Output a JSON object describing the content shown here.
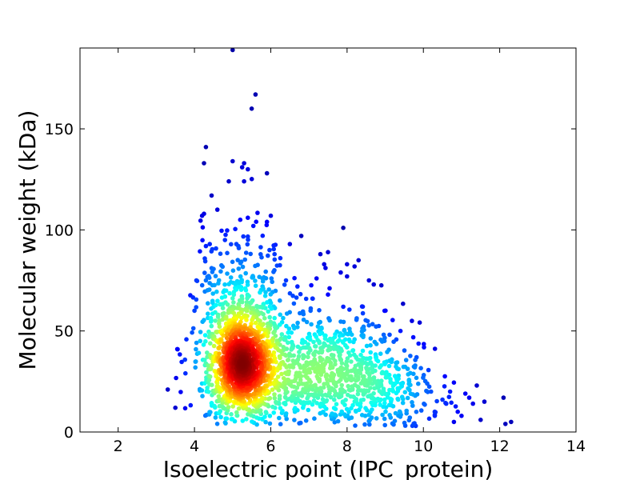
{
  "chart_data": {
    "type": "scatter",
    "title": "",
    "xlabel": "Isoelectric point (IPC_protein)",
    "ylabel": "Molecular weight (kDa)",
    "xlim": [
      1,
      14
    ],
    "ylim": [
      0,
      190
    ],
    "xticks": [
      2,
      4,
      6,
      8,
      10,
      12,
      14
    ],
    "yticks": [
      0,
      50,
      100,
      150
    ],
    "grid": false,
    "legend": "none",
    "color_scale": "jet (point density)",
    "colors": [
      "#00007f",
      "#0000ff",
      "#007fff",
      "#00ffff",
      "#7fff7f",
      "#ffff00",
      "#ff7f00",
      "#ff0000",
      "#7f0000"
    ],
    "outliers": [
      {
        "x": 5.0,
        "y": 189
      },
      {
        "x": 5.6,
        "y": 167
      },
      {
        "x": 5.5,
        "y": 160
      },
      {
        "x": 4.3,
        "y": 141
      },
      {
        "x": 4.25,
        "y": 133
      },
      {
        "x": 5.0,
        "y": 134
      },
      {
        "x": 5.3,
        "y": 133
      },
      {
        "x": 5.25,
        "y": 131
      },
      {
        "x": 5.4,
        "y": 130
      },
      {
        "x": 5.9,
        "y": 128
      },
      {
        "x": 5.3,
        "y": 124
      },
      {
        "x": 4.9,
        "y": 124
      },
      {
        "x": 4.45,
        "y": 117
      },
      {
        "x": 4.6,
        "y": 110
      },
      {
        "x": 4.25,
        "y": 108
      },
      {
        "x": 4.2,
        "y": 107
      },
      {
        "x": 6.0,
        "y": 107
      },
      {
        "x": 5.4,
        "y": 106
      },
      {
        "x": 5.2,
        "y": 105
      },
      {
        "x": 5.9,
        "y": 104
      },
      {
        "x": 7.9,
        "y": 101
      },
      {
        "x": 6.8,
        "y": 97
      },
      {
        "x": 4.8,
        "y": 95
      },
      {
        "x": 5.1,
        "y": 93
      },
      {
        "x": 6.5,
        "y": 93
      },
      {
        "x": 4.3,
        "y": 92
      },
      {
        "x": 6.1,
        "y": 88
      },
      {
        "x": 6.25,
        "y": 86
      },
      {
        "x": 7.5,
        "y": 89
      },
      {
        "x": 7.3,
        "y": 88
      },
      {
        "x": 8.3,
        "y": 85
      },
      {
        "x": 7.4,
        "y": 83
      },
      {
        "x": 8.0,
        "y": 83
      },
      {
        "x": 8.0,
        "y": 77
      },
      {
        "x": 7.2,
        "y": 76
      },
      {
        "x": 4.05,
        "y": 75
      },
      {
        "x": 4.3,
        "y": 75
      },
      {
        "x": 6.4,
        "y": 75
      },
      {
        "x": 8.7,
        "y": 73
      },
      {
        "x": 6.7,
        "y": 72
      },
      {
        "x": 7.5,
        "y": 68
      },
      {
        "x": 7.1,
        "y": 66
      },
      {
        "x": 7.9,
        "y": 62
      },
      {
        "x": 4.0,
        "y": 60
      },
      {
        "x": 3.55,
        "y": 41
      },
      {
        "x": 3.3,
        "y": 21
      },
      {
        "x": 3.5,
        "y": 12
      },
      {
        "x": 9.7,
        "y": 55
      },
      {
        "x": 9.4,
        "y": 50
      },
      {
        "x": 10.1,
        "y": 24
      },
      {
        "x": 10.2,
        "y": 20
      },
      {
        "x": 10.5,
        "y": 16
      },
      {
        "x": 10.6,
        "y": 14
      },
      {
        "x": 10.7,
        "y": 20
      },
      {
        "x": 10.9,
        "y": 10
      },
      {
        "x": 11.0,
        "y": 8
      },
      {
        "x": 11.1,
        "y": 19
      },
      {
        "x": 11.2,
        "y": 17
      },
      {
        "x": 11.3,
        "y": 14
      },
      {
        "x": 11.4,
        "y": 23
      },
      {
        "x": 11.5,
        "y": 6
      },
      {
        "x": 11.6,
        "y": 15
      },
      {
        "x": 12.1,
        "y": 17
      },
      {
        "x": 12.15,
        "y": 4
      },
      {
        "x": 12.3,
        "y": 5
      },
      {
        "x": 10.8,
        "y": 5
      },
      {
        "x": 10.3,
        "y": 8
      },
      {
        "x": 9.8,
        "y": 3
      }
    ],
    "clusters": [
      {
        "cx": 5.25,
        "cy": 32,
        "sx": 0.42,
        "sy": 12,
        "n": 900
      },
      {
        "cx": 5.1,
        "cy": 40,
        "sx": 0.6,
        "sy": 22,
        "n": 500
      },
      {
        "cx": 7.8,
        "cy": 28,
        "sx": 1.05,
        "sy": 13,
        "n": 650
      },
      {
        "cx": 6.4,
        "cy": 30,
        "sx": 0.7,
        "sy": 14,
        "n": 220
      },
      {
        "cx": 5.3,
        "cy": 75,
        "sx": 0.55,
        "sy": 14,
        "n": 110
      },
      {
        "cx": 7.6,
        "cy": 55,
        "sx": 0.9,
        "sy": 12,
        "n": 70
      },
      {
        "cx": 9.3,
        "cy": 15,
        "sx": 0.6,
        "sy": 9,
        "n": 90
      }
    ]
  }
}
